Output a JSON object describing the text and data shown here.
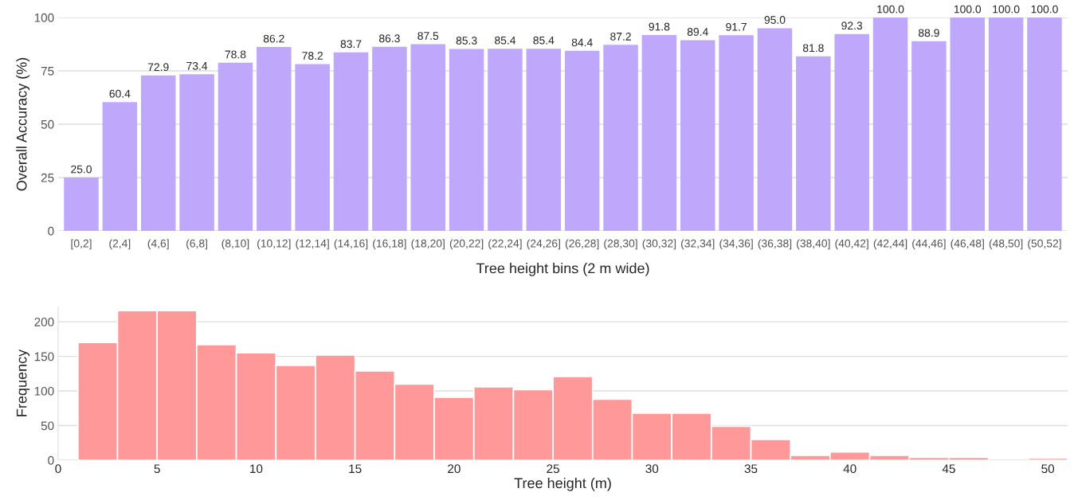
{
  "chart_data": [
    {
      "type": "bar",
      "xlabel": "Tree height bins (2 m wide)",
      "ylabel": "Overall Accuracy (%)",
      "categories": [
        "[0,2]",
        "(2,4]",
        "(4,6]",
        "(6,8]",
        "(8,10]",
        "(10,12]",
        "(12,14]",
        "(14,16]",
        "(16,18]",
        "(18,20]",
        "(20,22]",
        "(22,24]",
        "(24,26]",
        "(26,28]",
        "(28,30]",
        "(30,32]",
        "(32,34]",
        "(34,36]",
        "(36,38]",
        "(38,40]",
        "(40,42]",
        "(42,44]",
        "(44,46]",
        "(46,48]",
        "(48,50]",
        "(50,52]"
      ],
      "values": [
        25.0,
        60.4,
        72.9,
        73.4,
        78.8,
        86.2,
        78.2,
        83.7,
        86.3,
        87.5,
        85.3,
        85.4,
        85.4,
        84.4,
        87.2,
        91.8,
        89.4,
        91.7,
        95.0,
        81.8,
        92.3,
        100.0,
        88.9,
        100.0,
        100.0,
        100.0
      ],
      "color": "#bfa8fc",
      "value_labels": [
        "25.0",
        "60.4",
        "72.9",
        "73.4",
        "78.8",
        "86.2",
        "78.2",
        "83.7",
        "86.3",
        "87.5",
        "85.3",
        "85.4",
        "85.4",
        "84.4",
        "87.2",
        "91.8",
        "89.4",
        "91.7",
        "95.0",
        "81.8",
        "92.3",
        "100.0",
        "88.9",
        "100.0",
        "100.0",
        "100.0"
      ],
      "ylim": [
        0,
        100
      ],
      "yticks": [
        0,
        25,
        50,
        75,
        100
      ],
      "grid": "y"
    },
    {
      "type": "histogram",
      "xlabel": "Tree height (m)",
      "ylabel": "Frequency",
      "bins": [
        1,
        3,
        5,
        7,
        9,
        11,
        13,
        15,
        17,
        19,
        21,
        23,
        25,
        27,
        29,
        31,
        33,
        35,
        37,
        39,
        41,
        43,
        45,
        47,
        49,
        51
      ],
      "values": [
        170,
        216,
        216,
        167,
        155,
        137,
        152,
        129,
        110,
        91,
        106,
        102,
        121,
        88,
        68,
        68,
        49,
        30,
        7,
        12,
        7,
        4,
        4,
        0,
        3
      ],
      "color": "#ff9999",
      "xlim": [
        0,
        51
      ],
      "xticks": [
        0,
        5,
        10,
        15,
        20,
        25,
        30,
        35,
        40,
        45,
        50
      ],
      "ylim": [
        0,
        222
      ],
      "yticks": [
        0,
        50,
        100,
        150,
        200
      ],
      "grid": "y"
    }
  ]
}
